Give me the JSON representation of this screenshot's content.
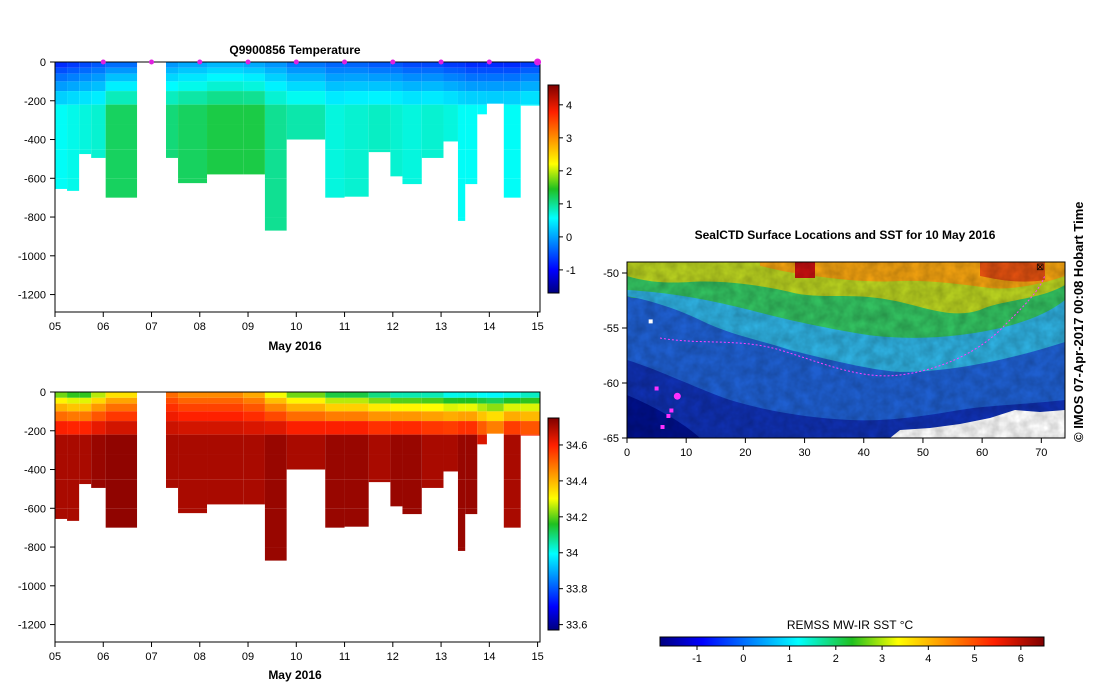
{
  "credit": "©  IMOS 07-Apr-2017 00:08 Hobart Time",
  "chart_data": [
    {
      "type": "heatmap",
      "title": "Q9900856  Temperature",
      "xlabel": "May 2016",
      "ylabel": "",
      "x_ticks": [
        "05",
        "06",
        "07",
        "08",
        "09",
        "10",
        "11",
        "12",
        "13",
        "14",
        "15"
      ],
      "y_ticks": [
        "0",
        "-200",
        "-400",
        "-600",
        "-800",
        "-1000",
        "-1200"
      ],
      "xlim": [
        5,
        15.05
      ],
      "ylim": [
        -1290,
        0
      ],
      "colorbar": {
        "min": -1.7,
        "max": 4.6,
        "ticks": [
          "-1",
          "0",
          "1",
          "2",
          "3",
          "4"
        ]
      },
      "profiles": [
        {
          "x0": 5.0,
          "x1": 5.25,
          "bottom": -655,
          "surface": -0.9,
          "deep": 0.6
        },
        {
          "x0": 5.25,
          "x1": 5.5,
          "bottom": -665,
          "surface": -0.8,
          "deep": 0.65
        },
        {
          "x0": 5.5,
          "x1": 5.75,
          "bottom": -475,
          "surface": -0.7,
          "deep": 0.7
        },
        {
          "x0": 5.75,
          "x1": 6.05,
          "bottom": -495,
          "surface": -0.6,
          "deep": 0.75
        },
        {
          "x0": 6.05,
          "x1": 6.7,
          "bottom": -700,
          "surface": -0.5,
          "deep": 1.2
        },
        {
          "x0": 7.3,
          "x1": 7.55,
          "bottom": -495,
          "surface": -0.2,
          "deep": 1.1
        },
        {
          "x0": 7.55,
          "x1": 8.15,
          "bottom": -625,
          "surface": -0.1,
          "deep": 1.2
        },
        {
          "x0": 8.15,
          "x1": 8.9,
          "bottom": -580,
          "surface": 0.0,
          "deep": 1.3
        },
        {
          "x0": 8.9,
          "x1": 9.35,
          "bottom": -580,
          "surface": -0.1,
          "deep": 1.3
        },
        {
          "x0": 9.35,
          "x1": 9.8,
          "bottom": -870,
          "surface": -0.2,
          "deep": 1.0
        },
        {
          "x0": 9.8,
          "x1": 10.6,
          "bottom": -400,
          "surface": -0.4,
          "deep": 0.9
        },
        {
          "x0": 10.6,
          "x1": 11.0,
          "bottom": -700,
          "surface": -0.5,
          "deep": 0.7
        },
        {
          "x0": 11.0,
          "x1": 11.5,
          "bottom": -695,
          "surface": -0.5,
          "deep": 0.75
        },
        {
          "x0": 11.5,
          "x1": 11.95,
          "bottom": -465,
          "surface": -0.6,
          "deep": 0.8
        },
        {
          "x0": 11.95,
          "x1": 12.2,
          "bottom": -590,
          "surface": -0.6,
          "deep": 0.75
        },
        {
          "x0": 12.2,
          "x1": 12.6,
          "bottom": -630,
          "surface": -0.7,
          "deep": 0.7
        },
        {
          "x0": 12.6,
          "x1": 13.05,
          "bottom": -495,
          "surface": -0.7,
          "deep": 0.75
        },
        {
          "x0": 13.05,
          "x1": 13.35,
          "bottom": -410,
          "surface": -0.8,
          "deep": 0.7
        },
        {
          "x0": 13.35,
          "x1": 13.5,
          "bottom": -820,
          "surface": -0.8,
          "deep": 0.6
        },
        {
          "x0": 13.5,
          "x1": 13.75,
          "bottom": -630,
          "surface": -0.9,
          "deep": 0.6
        },
        {
          "x0": 13.75,
          "x1": 13.95,
          "bottom": -270,
          "surface": -0.9,
          "deep": 0.6
        },
        {
          "x0": 13.95,
          "x1": 14.3,
          "bottom": -215,
          "surface": -0.9,
          "deep": 0.6
        },
        {
          "x0": 14.3,
          "x1": 14.65,
          "bottom": -700,
          "surface": -0.9,
          "deep": 0.6
        },
        {
          "x0": 14.65,
          "x1": 15.05,
          "bottom": -225,
          "surface": -0.8,
          "deep": 0.7
        }
      ]
    },
    {
      "type": "heatmap",
      "title": "",
      "xlabel": "May 2016",
      "ylabel": "",
      "x_ticks": [
        "05",
        "06",
        "07",
        "08",
        "09",
        "10",
        "11",
        "12",
        "13",
        "14",
        "15"
      ],
      "y_ticks": [
        "0",
        "-200",
        "-400",
        "-600",
        "-800",
        "-1000",
        "-1200"
      ],
      "xlim": [
        5,
        15.05
      ],
      "ylim": [
        -1290,
        0
      ],
      "colorbar": {
        "min": 33.57,
        "max": 34.75,
        "ticks": [
          "33.6",
          "33.8",
          "34",
          "34.2",
          "34.4",
          "34.6"
        ]
      },
      "profiles": [
        {
          "x0": 5.0,
          "x1": 5.25,
          "bottom": -655,
          "surface": 34.1,
          "deep": 34.7
        },
        {
          "x0": 5.25,
          "x1": 5.5,
          "bottom": -665,
          "surface": 34.05,
          "deep": 34.7
        },
        {
          "x0": 5.5,
          "x1": 5.75,
          "bottom": -475,
          "surface": 34.05,
          "deep": 34.7
        },
        {
          "x0": 5.75,
          "x1": 6.05,
          "bottom": -495,
          "surface": 34.15,
          "deep": 34.72
        },
        {
          "x0": 6.05,
          "x1": 6.7,
          "bottom": -700,
          "surface": 34.25,
          "deep": 34.73
        },
        {
          "x0": 7.3,
          "x1": 7.55,
          "bottom": -495,
          "surface": 34.45,
          "deep": 34.7
        },
        {
          "x0": 7.55,
          "x1": 8.15,
          "bottom": -625,
          "surface": 34.4,
          "deep": 34.7
        },
        {
          "x0": 8.15,
          "x1": 8.9,
          "bottom": -580,
          "surface": 34.4,
          "deep": 34.7
        },
        {
          "x0": 8.9,
          "x1": 9.35,
          "bottom": -580,
          "surface": 34.35,
          "deep": 34.7
        },
        {
          "x0": 9.35,
          "x1": 9.8,
          "bottom": -870,
          "surface": 34.2,
          "deep": 34.72
        },
        {
          "x0": 9.8,
          "x1": 10.6,
          "bottom": -400,
          "surface": 34.1,
          "deep": 34.7
        },
        {
          "x0": 10.6,
          "x1": 11.0,
          "bottom": -700,
          "surface": 34.0,
          "deep": 34.72
        },
        {
          "x0": 11.0,
          "x1": 11.5,
          "bottom": -695,
          "surface": 34.0,
          "deep": 34.72
        },
        {
          "x0": 11.5,
          "x1": 11.95,
          "bottom": -465,
          "surface": 33.95,
          "deep": 34.7
        },
        {
          "x0": 11.95,
          "x1": 12.2,
          "bottom": -590,
          "surface": 33.9,
          "deep": 34.72
        },
        {
          "x0": 12.2,
          "x1": 12.6,
          "bottom": -630,
          "surface": 33.9,
          "deep": 34.72
        },
        {
          "x0": 12.6,
          "x1": 13.05,
          "bottom": -495,
          "surface": 33.9,
          "deep": 34.7
        },
        {
          "x0": 13.05,
          "x1": 13.35,
          "bottom": -410,
          "surface": 33.85,
          "deep": 34.7
        },
        {
          "x0": 13.35,
          "x1": 13.5,
          "bottom": -820,
          "surface": 33.85,
          "deep": 34.72
        },
        {
          "x0": 13.5,
          "x1": 13.75,
          "bottom": -630,
          "surface": 33.85,
          "deep": 34.72
        },
        {
          "x0": 13.75,
          "x1": 13.95,
          "bottom": -270,
          "surface": 33.85,
          "deep": 34.65
        },
        {
          "x0": 13.95,
          "x1": 14.3,
          "bottom": -215,
          "surface": 33.85,
          "deep": 34.6
        },
        {
          "x0": 14.3,
          "x1": 14.65,
          "bottom": -700,
          "surface": 33.85,
          "deep": 34.7
        },
        {
          "x0": 14.65,
          "x1": 15.05,
          "bottom": -225,
          "surface": 33.9,
          "deep": 34.65
        }
      ]
    },
    {
      "type": "heatmap",
      "title": "SealCTD Surface Locations and SST for 10 May 2016",
      "xlabel": "",
      "ylabel": "",
      "x_ticks": [
        "0",
        "10",
        "20",
        "30",
        "40",
        "50",
        "60",
        "70"
      ],
      "y_ticks": [
        "-50",
        "-55",
        "-60",
        "-65"
      ],
      "xlim": [
        0,
        74
      ],
      "ylim": [
        -65,
        -49
      ],
      "colorbar": {
        "label": "REMSS MW-IR SST °C",
        "min": -1.8,
        "max": 6.5,
        "ticks": [
          "-1",
          "0",
          "1",
          "2",
          "3",
          "4",
          "5",
          "6"
        ]
      },
      "track_points": [
        [
          5,
          -60.5
        ],
        [
          6,
          -64
        ],
        [
          7,
          -63
        ],
        [
          7.5,
          -62.5
        ],
        [
          8.5,
          -61.2
        ]
      ],
      "current_location": [
        8.5,
        -61.2
      ],
      "island_marker": [
        4,
        -54.4
      ]
    }
  ]
}
